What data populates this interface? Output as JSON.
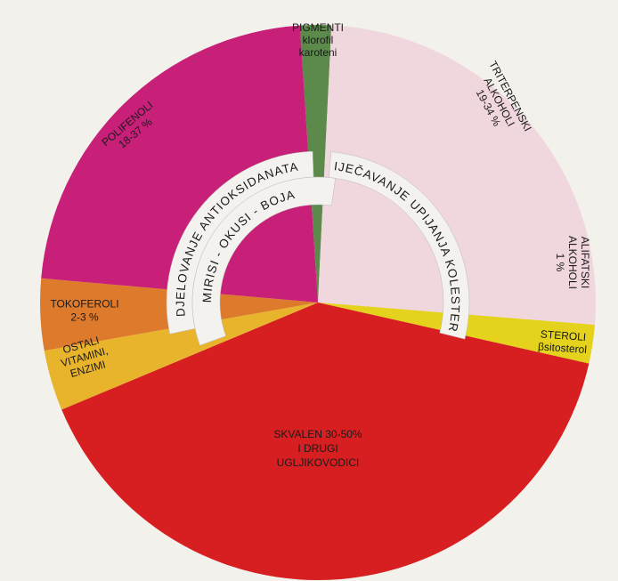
{
  "sectors": [
    {
      "lines": [
        "PIGMENTI",
        "klorofil",
        "karoteni"
      ]
    },
    {
      "lines": [
        "TRITERPENSKI",
        "ALKOHOLI",
        "19-34 %"
      ]
    },
    {
      "lines": [
        "ALIFATSKI",
        "ALKOHOLI",
        "1 %"
      ]
    },
    {
      "lines": [
        "STEROLI",
        "βsitosterol"
      ]
    },
    {
      "lines": [
        "SKVALEN 30-50%",
        "I DRUGI",
        "UGLJIKOVODICI"
      ]
    },
    {
      "lines": [
        "OSTALI",
        "VITAMINI,",
        "ENZIMI"
      ]
    },
    {
      "lines": [
        "TOKOFEROLI",
        "2-3 %"
      ]
    },
    {
      "lines": [
        "POLIFENOLI",
        "18-37 %"
      ]
    }
  ],
  "rings": {
    "left": "DJELOVANJE ANTIOKSIDANATA",
    "right": "SPRIJEČAVANJE UPIJANJA KOLESTEROLA",
    "inner": "MIRISI - OKUSI - BOJA"
  }
}
